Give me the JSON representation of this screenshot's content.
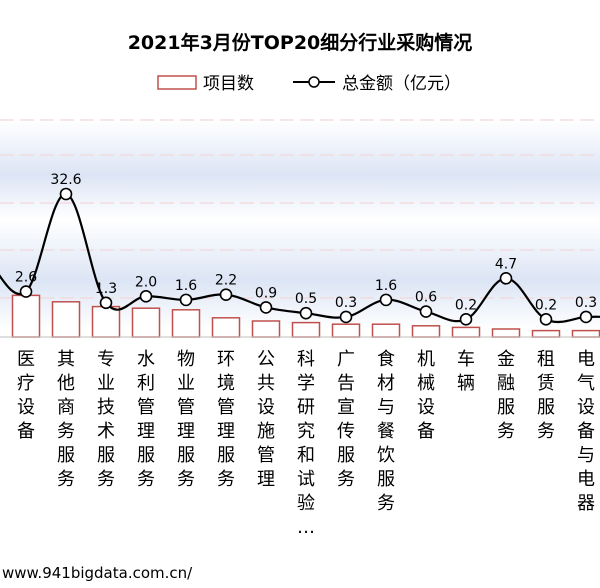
{
  "chart_data": {
    "type": "bar",
    "title": "2021年3月份TOP20细分行业采购情况",
    "categories": [
      "医疗设备",
      "其他商务服务",
      "专业技术服务",
      "水利管理服务",
      "物业管理服务",
      "环境管理服务",
      "公共设施管理",
      "科学研究和试验…",
      "广告宣传服务",
      "食材与餐饮服务",
      "机械设备",
      "车辆",
      "金融服务",
      "租赁服务",
      "电气设备与电器"
    ],
    "series": [
      {
        "name": "项目数",
        "type": "bar",
        "values": [
          1.3,
          1.1,
          0.95,
          0.9,
          0.85,
          0.6,
          0.5,
          0.45,
          0.4,
          0.4,
          0.35,
          0.3,
          0.25,
          0.2,
          0.2
        ]
      },
      {
        "name": "总金额（亿元）",
        "type": "line",
        "values": [
          2.6,
          32.6,
          1.3,
          2.0,
          1.6,
          2.2,
          0.9,
          0.5,
          0.3,
          1.6,
          0.6,
          0.2,
          4.7,
          0.2,
          0.3
        ]
      }
    ],
    "data_labels": [
      "2.6",
      "32.6",
      "1.3",
      "2.0",
      "1.6",
      "2.2",
      "0.9",
      "0.5",
      "0.3",
      "1.6",
      "0.6",
      "0.2",
      "4.7",
      "0.2",
      "0.3"
    ],
    "legend": "top",
    "grid": true,
    "colors": {
      "bar_stroke": "#c0504d",
      "line": "#000000",
      "gridline": "#f2d7d9",
      "band": "#dde6f6"
    }
  },
  "footer": {
    "source_url": "www.941bigdata.com.cn/"
  }
}
